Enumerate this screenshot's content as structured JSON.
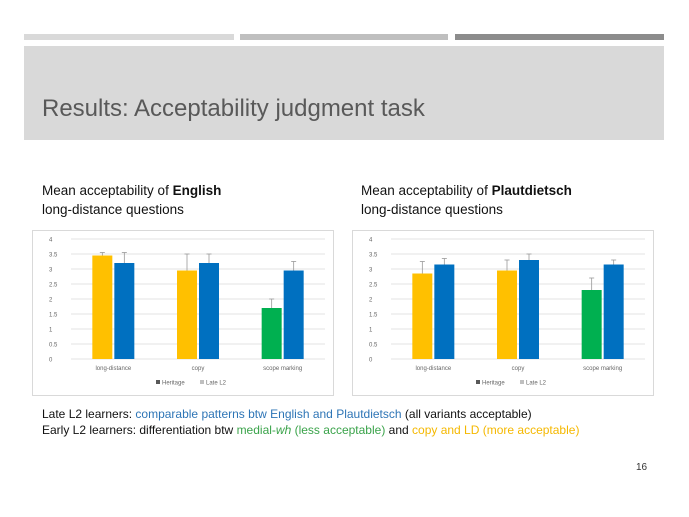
{
  "slide": {
    "title": "Results: Acceptability judgment task",
    "page_number": "16",
    "bars_colors": [
      "#d9d9d9",
      "#bfbfbf",
      "#8c8c8c"
    ]
  },
  "charts_header": [
    {
      "prefix": "Mean acceptability of ",
      "bold": "English",
      "line2": "long-distance questions"
    },
    {
      "prefix": "Mean acceptability of ",
      "bold": "Plautdietsch",
      "line2": "long-distance questions"
    }
  ],
  "summary": {
    "line1_a": "Late L2 learners: ",
    "line1_b": "comparable patterns btw English and Plautdietsch",
    "line1_c": " (all variants acceptable)",
    "line2_a": "Early L2 learners: differentiation btw ",
    "line2_b": "medial-",
    "line2_b_italic": "wh",
    "line2_c": " (less acceptable)",
    "line2_d": " and ",
    "line2_e": "copy and LD (more acceptable)"
  },
  "chart_data": [
    {
      "type": "bar",
      "categories": [
        "long-distance",
        "copy",
        "scope marking"
      ],
      "yticks": [
        "0",
        "0.5",
        "1",
        "1.5",
        "2",
        "2.5",
        "3",
        "3.5",
        "4"
      ],
      "ylim": [
        0,
        4
      ],
      "legend": [
        "Heritage",
        "Late L2"
      ],
      "legend_position": "bottom",
      "grid": true,
      "series": [
        {
          "name": "Heritage",
          "values": [
            3.45,
            2.95,
            1.7
          ],
          "errors": [
            0.1,
            0.55,
            0.3
          ],
          "colors": [
            "#ffc000",
            "#ffc000",
            "#00b050"
          ]
        },
        {
          "name": "Late L2",
          "values": [
            3.2,
            3.2,
            2.95
          ],
          "errors": [
            0.35,
            0.3,
            0.3
          ],
          "colors": [
            "#0070c0",
            "#0070c0",
            "#0070c0"
          ]
        }
      ]
    },
    {
      "type": "bar",
      "categories": [
        "long-distance",
        "copy",
        "scope marking"
      ],
      "yticks": [
        "0",
        "0.5",
        "1",
        "1.5",
        "2",
        "2.5",
        "3",
        "3.5",
        "4"
      ],
      "ylim": [
        0,
        4
      ],
      "legend": [
        "Heritage",
        "Late L2"
      ],
      "legend_position": "bottom",
      "grid": true,
      "series": [
        {
          "name": "Heritage",
          "values": [
            2.85,
            2.95,
            2.3
          ],
          "errors": [
            0.4,
            0.35,
            0.4
          ],
          "colors": [
            "#ffc000",
            "#ffc000",
            "#00b050"
          ]
        },
        {
          "name": "Late L2",
          "values": [
            3.15,
            3.3,
            3.15
          ],
          "errors": [
            0.2,
            0.2,
            0.15
          ],
          "colors": [
            "#0070c0",
            "#0070c0",
            "#0070c0"
          ]
        }
      ]
    }
  ]
}
